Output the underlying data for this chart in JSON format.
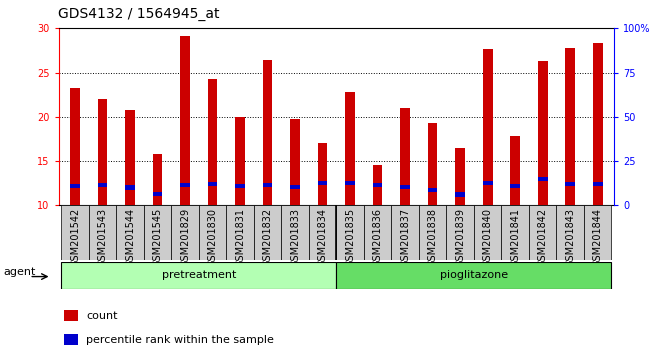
{
  "title": "GDS4132 / 1564945_at",
  "samples": [
    "GSM201542",
    "GSM201543",
    "GSM201544",
    "GSM201545",
    "GSM201829",
    "GSM201830",
    "GSM201831",
    "GSM201832",
    "GSM201833",
    "GSM201834",
    "GSM201835",
    "GSM201836",
    "GSM201837",
    "GSM201838",
    "GSM201839",
    "GSM201840",
    "GSM201841",
    "GSM201842",
    "GSM201843",
    "GSM201844"
  ],
  "counts": [
    23.3,
    22.0,
    20.8,
    15.8,
    29.1,
    24.3,
    20.0,
    26.4,
    19.7,
    17.0,
    22.8,
    14.5,
    21.0,
    19.3,
    16.5,
    27.7,
    17.8,
    26.3,
    27.8,
    28.3
  ],
  "percentile_values": [
    12.2,
    12.3,
    12.0,
    11.3,
    12.3,
    12.4,
    12.2,
    12.3,
    12.1,
    12.5,
    12.5,
    12.3,
    12.1,
    11.7,
    11.2,
    12.5,
    12.2,
    13.0,
    12.4,
    12.4
  ],
  "bar_color": "#cc0000",
  "percentile_color": "#0000cc",
  "ylim_left": [
    10,
    30
  ],
  "ylim_right": [
    0,
    100
  ],
  "yticks_left": [
    10,
    15,
    20,
    25,
    30
  ],
  "yticks_right": [
    0,
    25,
    50,
    75,
    100
  ],
  "ytick_labels_right": [
    "0",
    "25",
    "50",
    "75",
    "100%"
  ],
  "n_pretreatment": 10,
  "n_pioglitazone": 10,
  "group_labels": [
    "pretreatment",
    "pioglitazone"
  ],
  "group_color_pre": "#b3ffb3",
  "group_color_pio": "#66dd66",
  "agent_label": "agent",
  "legend_count": "count",
  "legend_percentile": "percentile rank within the sample",
  "bar_width": 0.35,
  "background_color": "#ffffff",
  "plot_bg_color": "#ffffff",
  "title_fontsize": 10,
  "tick_fontsize": 7,
  "dotted_levels": [
    15,
    20,
    25
  ],
  "blue_bar_height": 0.5
}
